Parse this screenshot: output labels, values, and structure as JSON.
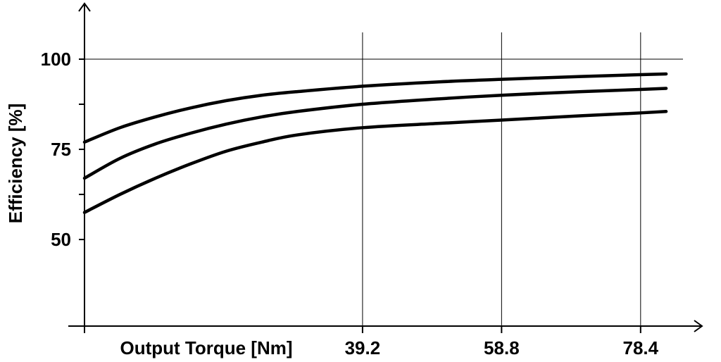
{
  "chart_data": {
    "type": "line",
    "title": "",
    "xlabel": "Output Torque [Nm]",
    "ylabel": "Efficiency [%]",
    "xlim": [
      0,
      80.9
    ],
    "ylim": [
      26,
      100
    ],
    "x_ticks": [
      39.2,
      58.8,
      78.4
    ],
    "y_ticks": [
      50,
      75,
      100
    ],
    "grid": "vertical lines at x ticks, horizontal line at 100",
    "legend": "none",
    "line_color": "#000000",
    "series": [
      {
        "x": [
          0,
          5,
          10,
          15,
          20,
          25,
          30,
          39.2,
          50,
          58.8,
          70,
          78.4,
          82
        ],
        "values": [
          77,
          81,
          84,
          86.5,
          88.5,
          90,
          91,
          92.5,
          93.7,
          94.4,
          95.2,
          95.7,
          95.9
        ]
      },
      {
        "x": [
          0,
          5,
          10,
          15,
          20,
          25,
          30,
          39.2,
          50,
          58.8,
          70,
          78.4,
          82
        ],
        "values": [
          67,
          72.5,
          76.5,
          79.5,
          82,
          84,
          85.5,
          87.5,
          89,
          90,
          91,
          91.6,
          91.9
        ]
      },
      {
        "x": [
          0,
          5,
          10,
          15,
          20,
          25,
          30,
          39.2,
          50,
          58.8,
          70,
          78.4,
          82
        ],
        "values": [
          57.5,
          62.5,
          67,
          71,
          74.5,
          77,
          79,
          81,
          82.2,
          83.1,
          84.3,
          85.1,
          85.5
        ]
      }
    ]
  }
}
